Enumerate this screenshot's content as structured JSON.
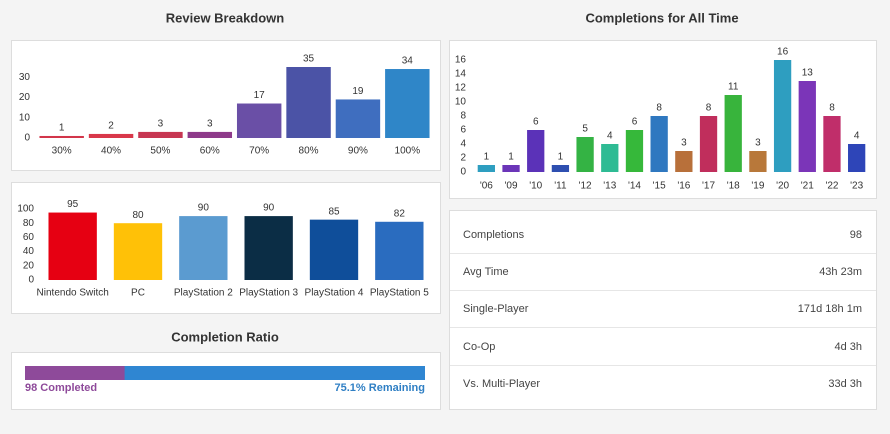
{
  "chart_data": [
    {
      "type": "bar",
      "title": "Review Breakdown",
      "categories": [
        "30%",
        "40%",
        "50%",
        "60%",
        "70%",
        "80%",
        "90%",
        "100%"
      ],
      "values": [
        1,
        2,
        3,
        3,
        17,
        35,
        19,
        34
      ],
      "colors": [
        "#d2354a",
        "#d9384a",
        "#c73652",
        "#8e3a8a",
        "#6a4fa6",
        "#4b53a6",
        "#3f6ebf",
        "#2f86c8"
      ],
      "ylim": [
        0,
        35
      ],
      "yticks": [
        0,
        10,
        20,
        30
      ]
    },
    {
      "type": "bar",
      "categories": [
        "Nintendo Switch",
        "PC",
        "PlayStation 2",
        "PlayStation 3",
        "PlayStation 4",
        "PlayStation 5"
      ],
      "values": [
        95,
        80,
        90,
        90,
        85,
        82
      ],
      "colors": [
        "#e60012",
        "#ffc107",
        "#5b9bd0",
        "#0b2d45",
        "#0f4e9a",
        "#2a6cbf"
      ],
      "ylim": [
        0,
        100
      ],
      "yticks": [
        0,
        20,
        40,
        60,
        80,
        100
      ]
    },
    {
      "type": "bar",
      "title": "Completions for All Time",
      "categories": [
        "'06",
        "'09",
        "'10",
        "'11",
        "'12",
        "'13",
        "'14",
        "'15",
        "'16",
        "'17",
        "'18",
        "'19",
        "'20",
        "'21",
        "'22",
        "'23"
      ],
      "values": [
        1,
        1,
        6,
        1,
        5,
        4,
        6,
        8,
        3,
        8,
        11,
        3,
        16,
        13,
        8,
        4
      ],
      "colors": [
        "#2e9ec0",
        "#6b35b8",
        "#5b32b8",
        "#2e4fb0",
        "#34b344",
        "#2ebb94",
        "#36b83a",
        "#2f78c0",
        "#b8703a",
        "#c02e5c",
        "#38b43c",
        "#b8783a",
        "#2e9ec0",
        "#7b35b8",
        "#c02e6a",
        "#2e45b8"
      ],
      "ylim": [
        0,
        16
      ],
      "yticks": [
        0,
        2,
        4,
        6,
        8,
        10,
        12,
        14,
        16
      ]
    }
  ],
  "completion_ratio": {
    "title": "Completion Ratio",
    "completed_label": "98 Completed",
    "remaining_label": "75.1% Remaining",
    "remaining": 75.1
  },
  "stats": {
    "rows": [
      {
        "label": "Completions",
        "value": "98"
      },
      {
        "label": "Avg Time",
        "value": "43h 23m"
      },
      {
        "label": "Single-Player",
        "value": "171d 18h 1m"
      },
      {
        "label": "Co-Op",
        "value": "4d 3h"
      },
      {
        "label": "Vs. Multi-Player",
        "value": "33d 3h"
      }
    ]
  }
}
